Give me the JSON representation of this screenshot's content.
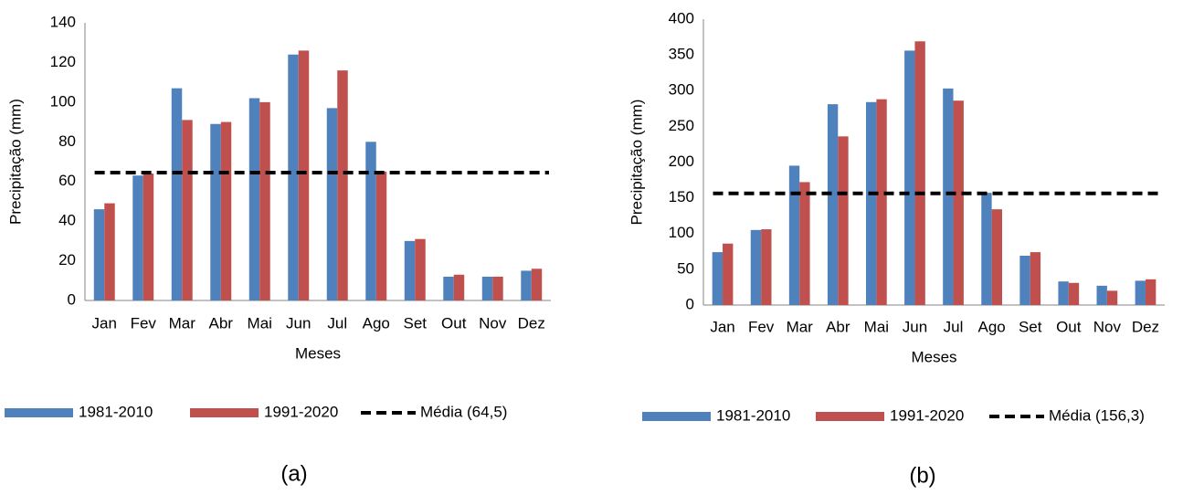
{
  "chart_data": [
    {
      "type": "bar",
      "label": "(a)",
      "x_label": "Meses",
      "y_label": "Precipitação (mm)",
      "categories": [
        "Jan",
        "Fev",
        "Mar",
        "Abr",
        "Mai",
        "Jun",
        "Jul",
        "Ago",
        "Set",
        "Out",
        "Nov",
        "Dez"
      ],
      "series": [
        {
          "name": "1981-2010",
          "color": "#4f81bd",
          "values": [
            46,
            63,
            107,
            89,
            102,
            124,
            97,
            80,
            30,
            12,
            12,
            15
          ]
        },
        {
          "name": "1991-2020",
          "color": "#c0504d",
          "values": [
            49,
            64,
            91,
            90,
            100,
            126,
            116,
            65,
            31,
            13,
            12,
            16
          ]
        }
      ],
      "mean": {
        "name": "Média (64,5)",
        "value": 64.5,
        "color": "#000000"
      },
      "ylim": [
        0,
        140
      ],
      "yticks": [
        0,
        20,
        40,
        60,
        80,
        100,
        120,
        140
      ],
      "grid": false
    },
    {
      "type": "bar",
      "label": "(b)",
      "x_label": "Meses",
      "y_label": "Precipitação (mm)",
      "categories": [
        "Jan",
        "Fev",
        "Mar",
        "Abr",
        "Mai",
        "Jun",
        "Jul",
        "Ago",
        "Set",
        "Out",
        "Nov",
        "Dez"
      ],
      "series": [
        {
          "name": "1981-2010",
          "color": "#4f81bd",
          "values": [
            74,
            105,
            195,
            281,
            284,
            356,
            303,
            157,
            69,
            33,
            27,
            34
          ]
        },
        {
          "name": "1991-2020",
          "color": "#c0504d",
          "values": [
            86,
            106,
            172,
            236,
            288,
            369,
            286,
            134,
            74,
            31,
            20,
            36
          ]
        }
      ],
      "mean": {
        "name": "Média (156,3)",
        "value": 156.3,
        "color": "#000000"
      },
      "ylim": [
        0,
        400
      ],
      "yticks": [
        0,
        50,
        100,
        150,
        200,
        250,
        300,
        350,
        400
      ],
      "grid": false
    }
  ]
}
